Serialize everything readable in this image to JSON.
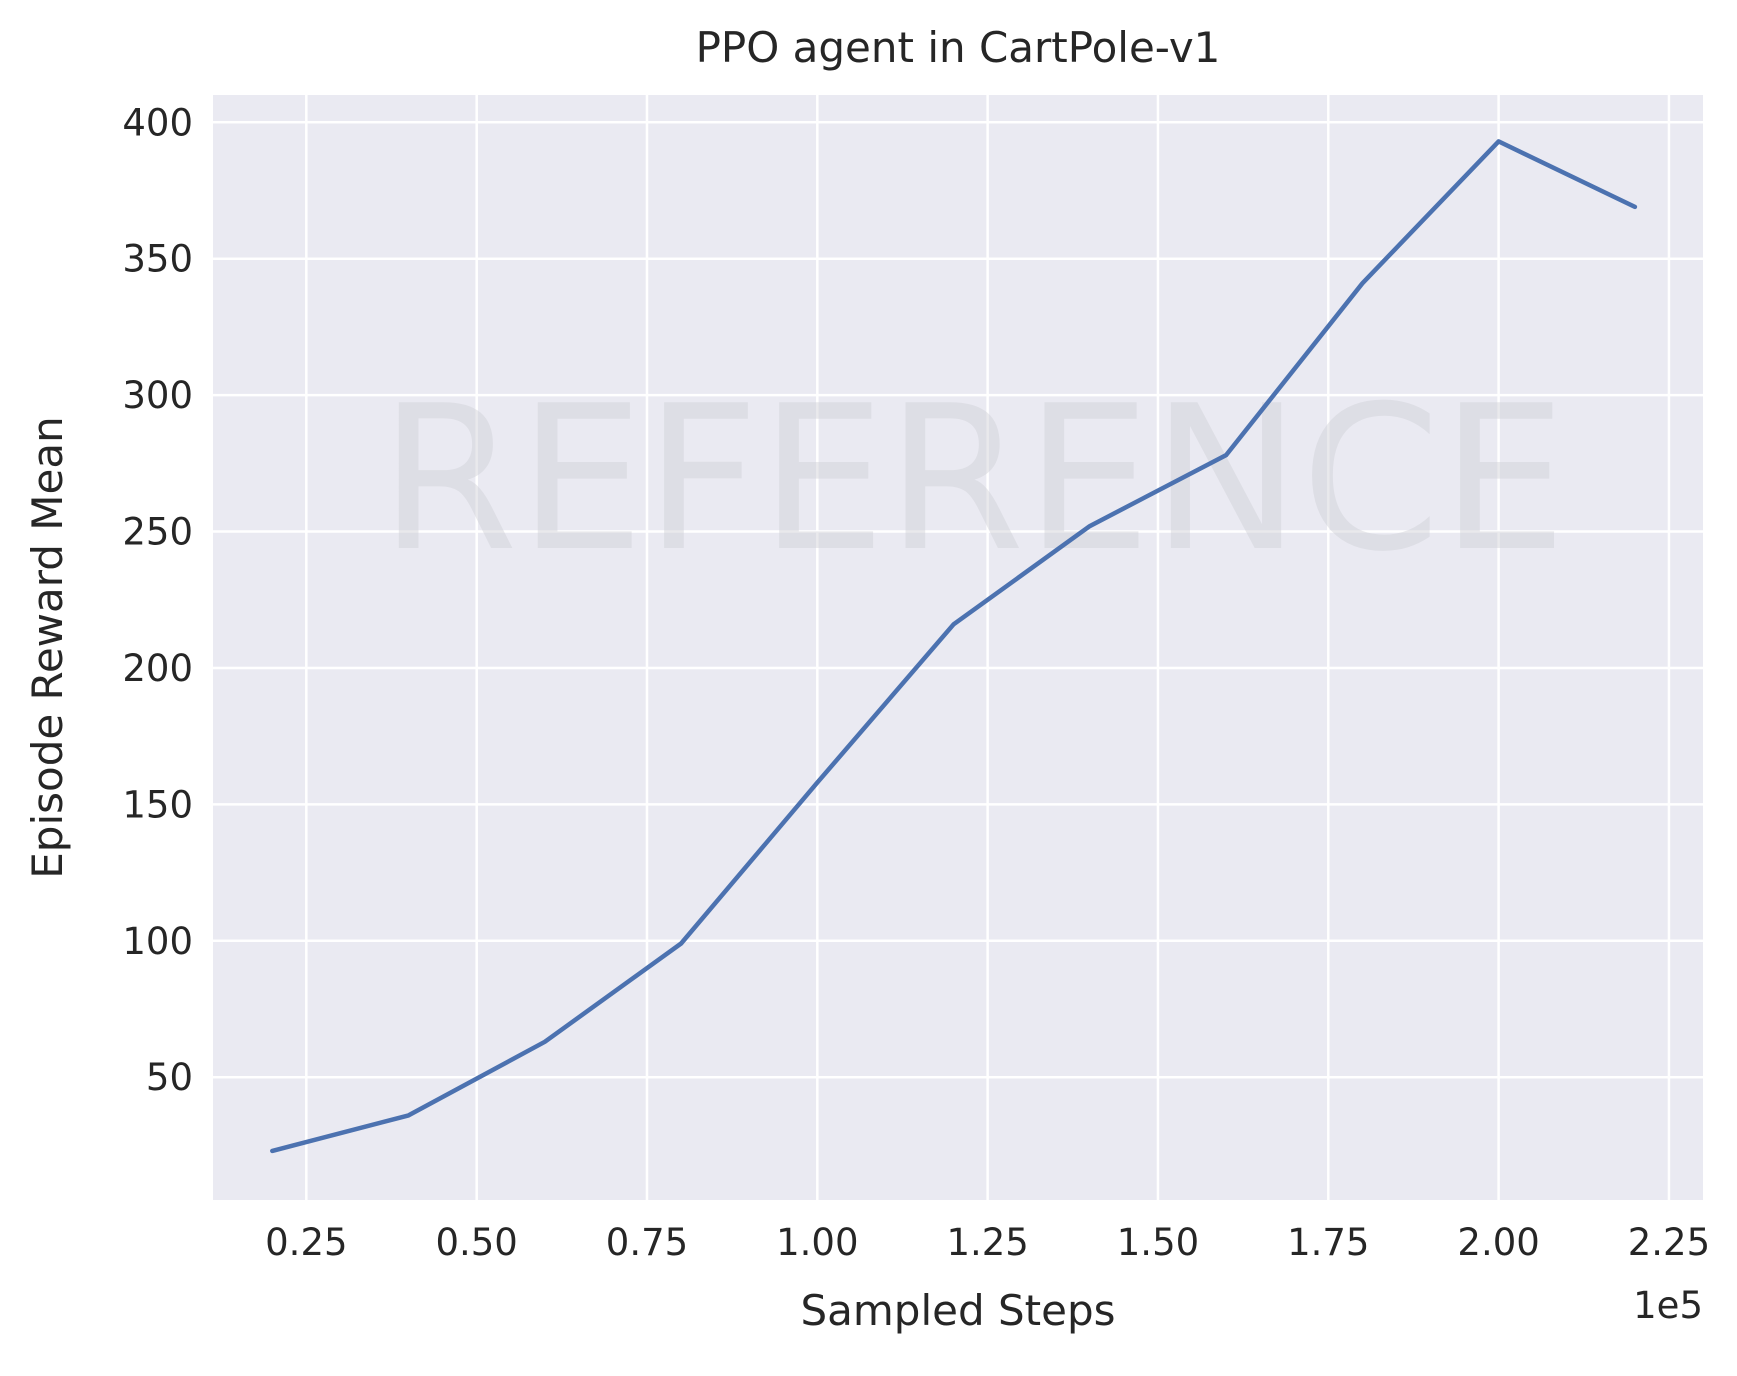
{
  "chart_data": {
    "type": "line",
    "title": "PPO agent in CartPole-v1",
    "xlabel": "Sampled Steps",
    "ylabel": "Episode Reward Mean",
    "x_offset_label": "1e5",
    "xlim": [
      0.113,
      2.3
    ],
    "ylim": [
      5,
      410
    ],
    "x_ticks": [
      0.25,
      0.5,
      0.75,
      1.0,
      1.25,
      1.5,
      1.75,
      2.0,
      2.25
    ],
    "x_tick_labels": [
      "0.25",
      "0.50",
      "0.75",
      "1.00",
      "1.25",
      "1.50",
      "1.75",
      "2.00",
      "2.25"
    ],
    "y_ticks": [
      50,
      100,
      150,
      200,
      250,
      300,
      350,
      400
    ],
    "y_tick_labels": [
      "50",
      "100",
      "150",
      "200",
      "250",
      "300",
      "350",
      "400"
    ],
    "grid": true,
    "background": "#eaeaf2",
    "series": [
      {
        "color": "#4c72b0",
        "x": [
          0.2,
          0.4,
          0.6,
          0.8,
          1.0,
          1.2,
          1.4,
          1.6,
          1.8,
          2.0,
          2.2
        ],
        "y": [
          23,
          36,
          63,
          99,
          158,
          216,
          252,
          278,
          341,
          393,
          369
        ]
      }
    ]
  },
  "watermark": "REFERENCE"
}
